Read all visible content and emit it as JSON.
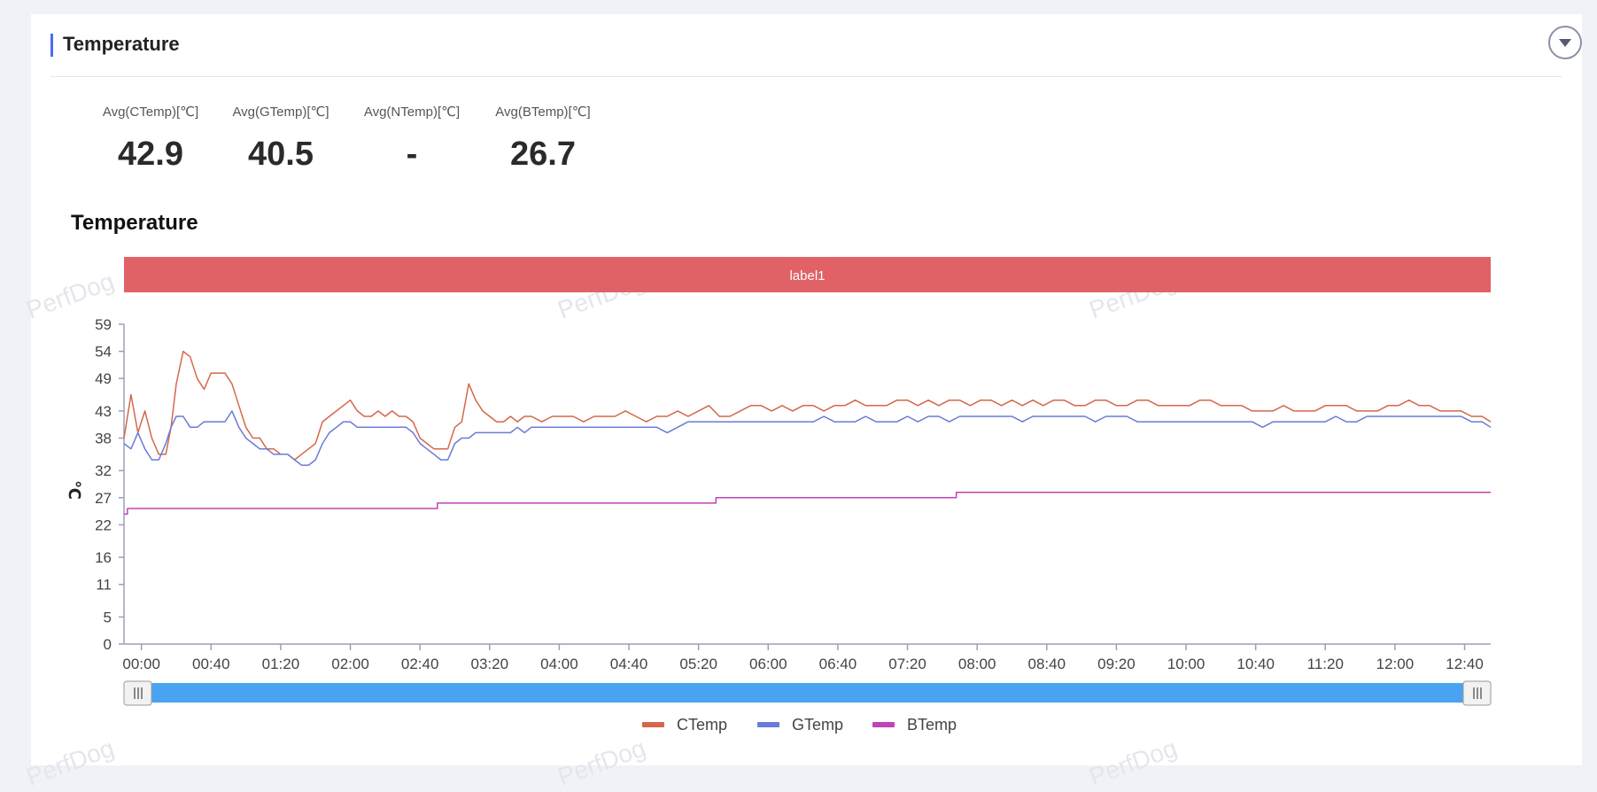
{
  "panel": {
    "title": "Temperature"
  },
  "stats": [
    {
      "label": "Avg(CTemp)[℃]",
      "value": "42.9"
    },
    {
      "label": "Avg(GTemp)[℃]",
      "value": "40.5"
    },
    {
      "label": "Avg(NTemp)[℃]",
      "value": "-"
    },
    {
      "label": "Avg(BTemp)[℃]",
      "value": "26.7"
    }
  ],
  "watermark": "PerfDog",
  "colors": {
    "accent": "#4a6cf7",
    "label_band": "#e06267",
    "slider": "#4aa3f2",
    "ctemp": "#d4684a",
    "gtemp": "#6a7bd8",
    "btemp": "#c043b8"
  },
  "chart_data": {
    "type": "line",
    "title": "Temperature",
    "ylabel": "℃",
    "ylim": [
      0,
      59
    ],
    "y_ticks": [
      "0",
      "5",
      "11",
      "16",
      "22",
      "27",
      "32",
      "38",
      "43",
      "49",
      "54",
      "59"
    ],
    "x_ticks": [
      "00:00",
      "00:40",
      "01:20",
      "02:00",
      "02:40",
      "03:20",
      "04:00",
      "04:40",
      "05:20",
      "06:00",
      "06:40",
      "07:20",
      "08:00",
      "08:40",
      "09:20",
      "10:00",
      "10:40",
      "11:20",
      "12:00",
      "12:40"
    ],
    "x_range_minutes": [
      -10,
      775
    ],
    "band_label": "label1",
    "legend_position": "bottom",
    "series": [
      {
        "name": "CTemp",
        "x": [
          -10,
          -6,
          -2,
          2,
          6,
          10,
          14,
          17,
          20,
          24,
          28,
          32,
          36,
          40,
          44,
          48,
          52,
          56,
          60,
          64,
          68,
          72,
          76,
          80,
          84,
          88,
          92,
          96,
          100,
          104,
          108,
          112,
          116,
          120,
          124,
          128,
          132,
          136,
          140,
          144,
          148,
          152,
          156,
          160,
          164,
          168,
          172,
          176,
          180,
          184,
          188,
          192,
          196,
          200,
          204,
          208,
          212,
          216,
          220,
          224,
          230,
          236,
          242,
          248,
          254,
          260,
          266,
          272,
          278,
          284,
          290,
          296,
          302,
          308,
          314,
          320,
          326,
          332,
          338,
          344,
          350,
          356,
          362,
          368,
          374,
          380,
          386,
          392,
          398,
          404,
          410,
          416,
          422,
          428,
          434,
          440,
          446,
          452,
          458,
          464,
          470,
          476,
          482,
          488,
          494,
          500,
          506,
          512,
          518,
          524,
          530,
          536,
          542,
          548,
          554,
          560,
          566,
          572,
          578,
          584,
          590,
          596,
          602,
          608,
          614,
          620,
          626,
          632,
          638,
          644,
          650,
          656,
          662,
          668,
          674,
          680,
          686,
          692,
          698,
          704,
          710,
          716,
          722,
          728,
          734,
          740,
          746,
          752,
          758,
          764,
          770,
          775
        ],
        "y": [
          38,
          46,
          39,
          43,
          38,
          35,
          35,
          40,
          48,
          54,
          53,
          49,
          47,
          50,
          50,
          50,
          48,
          44,
          40,
          38,
          38,
          36,
          36,
          35,
          35,
          34,
          35,
          36,
          37,
          41,
          42,
          43,
          44,
          45,
          43,
          42,
          42,
          43,
          42,
          43,
          42,
          42,
          41,
          38,
          37,
          36,
          36,
          36,
          40,
          41,
          48,
          45,
          43,
          42,
          41,
          41,
          42,
          41,
          42,
          42,
          41,
          42,
          42,
          42,
          41,
          42,
          42,
          42,
          43,
          42,
          41,
          42,
          42,
          43,
          42,
          43,
          44,
          42,
          42,
          43,
          44,
          44,
          43,
          44,
          43,
          44,
          44,
          43,
          44,
          44,
          45,
          44,
          44,
          44,
          45,
          45,
          44,
          45,
          44,
          45,
          45,
          44,
          45,
          45,
          44,
          45,
          44,
          45,
          44,
          45,
          45,
          44,
          44,
          45,
          45,
          44,
          44,
          45,
          45,
          44,
          44,
          44,
          44,
          45,
          45,
          44,
          44,
          44,
          43,
          43,
          43,
          44,
          43,
          43,
          43,
          44,
          44,
          44,
          43,
          43,
          43,
          44,
          44,
          45,
          44,
          44,
          43,
          43,
          43,
          42,
          42,
          41
        ]
      },
      {
        "name": "GTemp",
        "x": [
          -10,
          -6,
          -2,
          2,
          6,
          10,
          14,
          17,
          20,
          24,
          28,
          32,
          36,
          40,
          44,
          48,
          52,
          56,
          60,
          64,
          68,
          72,
          76,
          80,
          84,
          88,
          92,
          96,
          100,
          104,
          108,
          112,
          116,
          120,
          124,
          128,
          132,
          136,
          140,
          144,
          148,
          152,
          156,
          160,
          164,
          168,
          172,
          176,
          180,
          184,
          188,
          192,
          196,
          200,
          204,
          208,
          212,
          216,
          220,
          224,
          230,
          236,
          242,
          248,
          254,
          260,
          266,
          272,
          278,
          284,
          290,
          296,
          302,
          308,
          314,
          320,
          326,
          332,
          338,
          344,
          350,
          356,
          362,
          368,
          374,
          380,
          386,
          392,
          398,
          404,
          410,
          416,
          422,
          428,
          434,
          440,
          446,
          452,
          458,
          464,
          470,
          476,
          482,
          488,
          494,
          500,
          506,
          512,
          518,
          524,
          530,
          536,
          542,
          548,
          554,
          560,
          566,
          572,
          578,
          584,
          590,
          596,
          602,
          608,
          614,
          620,
          626,
          632,
          638,
          644,
          650,
          656,
          662,
          668,
          674,
          680,
          686,
          692,
          698,
          704,
          710,
          716,
          722,
          728,
          734,
          740,
          746,
          752,
          758,
          764,
          770,
          775
        ],
        "y": [
          37,
          36,
          39,
          36,
          34,
          34,
          37,
          40,
          42,
          42,
          40,
          40,
          41,
          41,
          41,
          41,
          43,
          40,
          38,
          37,
          36,
          36,
          35,
          35,
          35,
          34,
          33,
          33,
          34,
          37,
          39,
          40,
          41,
          41,
          40,
          40,
          40,
          40,
          40,
          40,
          40,
          40,
          39,
          37,
          36,
          35,
          34,
          34,
          37,
          38,
          38,
          39,
          39,
          39,
          39,
          39,
          39,
          40,
          39,
          40,
          40,
          40,
          40,
          40,
          40,
          40,
          40,
          40,
          40,
          40,
          40,
          40,
          39,
          40,
          41,
          41,
          41,
          41,
          41,
          41,
          41,
          41,
          41,
          41,
          41,
          41,
          41,
          42,
          41,
          41,
          41,
          42,
          41,
          41,
          41,
          42,
          41,
          42,
          42,
          41,
          42,
          42,
          42,
          42,
          42,
          42,
          41,
          42,
          42,
          42,
          42,
          42,
          42,
          41,
          42,
          42,
          42,
          41,
          41,
          41,
          41,
          41,
          41,
          41,
          41,
          41,
          41,
          41,
          41,
          40,
          41,
          41,
          41,
          41,
          41,
          41,
          42,
          41,
          41,
          42,
          42,
          42,
          42,
          42,
          42,
          42,
          42,
          42,
          42,
          41,
          41,
          40
        ]
      },
      {
        "name": "BTemp",
        "x": [
          -10,
          -8,
          -8,
          170,
          170,
          330,
          330,
          468,
          468,
          775
        ],
        "y": [
          24,
          24,
          25,
          25,
          26,
          26,
          27,
          27,
          28,
          28
        ]
      }
    ]
  }
}
